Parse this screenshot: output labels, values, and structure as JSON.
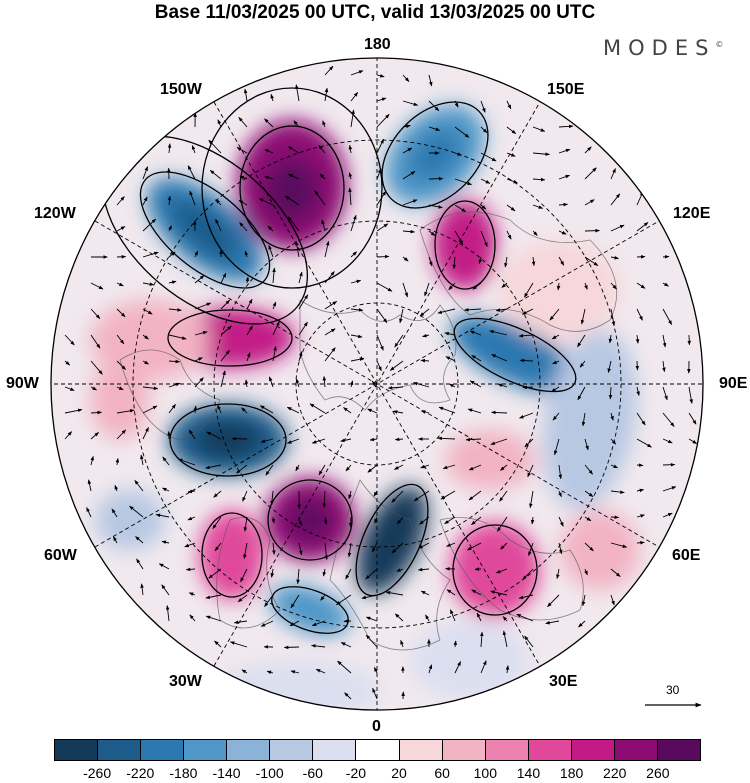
{
  "title": "Base 11/03/2025 00 UTC, valid 13/03/2025 00 UTC",
  "brand": "MODES",
  "brand_mark": "©",
  "longitude_labels": {
    "top": "180",
    "bottom": "0",
    "left": "90W",
    "right": "90E",
    "upper_left_150": "150W",
    "upper_left_120": "120W",
    "upper_right_150": "150E",
    "upper_right_120": "120E",
    "lower_left_60": "60W",
    "lower_left_30": "30W",
    "lower_right_60": "60E",
    "lower_right_30": "30E"
  },
  "vector_reference": "30",
  "colorbar": {
    "ticks": [
      "-260",
      "-220",
      "-180",
      "-140",
      "-100",
      "-60",
      "-20",
      "20",
      "60",
      "100",
      "140",
      "180",
      "220",
      "260"
    ],
    "colors": [
      "#143a5a",
      "#1d5b8a",
      "#2c78b0",
      "#4f97c8",
      "#8bb3d8",
      "#b7c8e3",
      "#dcdff0",
      "#ffffff",
      "#f7d7da",
      "#f2b3c4",
      "#ec82b0",
      "#e0489b",
      "#c21b86",
      "#8d0c73",
      "#5a0a5e"
    ]
  }
}
